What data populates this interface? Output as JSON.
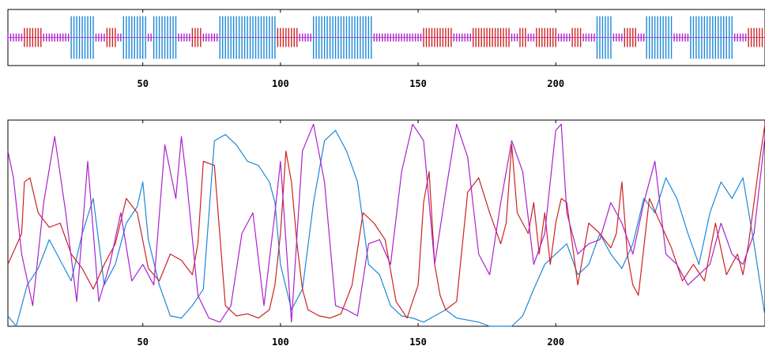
{
  "chart_data": [
    {
      "type": "bar",
      "description_role": "secondary-structure-track",
      "x_range": [
        1,
        276
      ],
      "xticks": [
        "50",
        "100",
        "150",
        "200"
      ],
      "xtick_values": [
        50,
        100,
        150,
        200
      ],
      "grid": false,
      "colors": {
        "helix": "#cc2222",
        "strand": "#1e88d8",
        "coil": "#aa22cc"
      },
      "segments": [
        {
          "state": "coil",
          "start": 1,
          "end": 6
        },
        {
          "state": "helix",
          "start": 7,
          "end": 13
        },
        {
          "state": "coil",
          "start": 14,
          "end": 23
        },
        {
          "state": "strand",
          "start": 24,
          "end": 32
        },
        {
          "state": "coil",
          "start": 33,
          "end": 36
        },
        {
          "state": "helix",
          "start": 37,
          "end": 40
        },
        {
          "state": "coil",
          "start": 41,
          "end": 42
        },
        {
          "state": "strand",
          "start": 43,
          "end": 51
        },
        {
          "state": "coil",
          "start": 52,
          "end": 53
        },
        {
          "state": "strand",
          "start": 54,
          "end": 62
        },
        {
          "state": "coil",
          "start": 63,
          "end": 67
        },
        {
          "state": "helix",
          "start": 68,
          "end": 71
        },
        {
          "state": "coil",
          "start": 72,
          "end": 77
        },
        {
          "state": "strand",
          "start": 78,
          "end": 98
        },
        {
          "state": "helix",
          "start": 99,
          "end": 106
        },
        {
          "state": "coil",
          "start": 107,
          "end": 111
        },
        {
          "state": "strand",
          "start": 112,
          "end": 133
        },
        {
          "state": "coil",
          "start": 134,
          "end": 151
        },
        {
          "state": "helix",
          "start": 152,
          "end": 162
        },
        {
          "state": "coil",
          "start": 163,
          "end": 169
        },
        {
          "state": "helix",
          "start": 170,
          "end": 183
        },
        {
          "state": "coil",
          "start": 184,
          "end": 186
        },
        {
          "state": "helix",
          "start": 187,
          "end": 189
        },
        {
          "state": "coil",
          "start": 190,
          "end": 192
        },
        {
          "state": "helix",
          "start": 193,
          "end": 200
        },
        {
          "state": "coil",
          "start": 201,
          "end": 205
        },
        {
          "state": "helix",
          "start": 206,
          "end": 209
        },
        {
          "state": "coil",
          "start": 210,
          "end": 214
        },
        {
          "state": "strand",
          "start": 215,
          "end": 220
        },
        {
          "state": "coil",
          "start": 221,
          "end": 224
        },
        {
          "state": "helix",
          "start": 225,
          "end": 229
        },
        {
          "state": "coil",
          "start": 230,
          "end": 232
        },
        {
          "state": "strand",
          "start": 233,
          "end": 242
        },
        {
          "state": "coil",
          "start": 243,
          "end": 248
        },
        {
          "state": "strand",
          "start": 249,
          "end": 264
        },
        {
          "state": "coil",
          "start": 265,
          "end": 269
        },
        {
          "state": "helix",
          "start": 270,
          "end": 276
        }
      ]
    },
    {
      "type": "line",
      "description_role": "probability-profile",
      "x_range": [
        1,
        276
      ],
      "y_range": [
        0,
        1
      ],
      "xticks": [
        "50",
        "100",
        "150",
        "200"
      ],
      "xtick_values": [
        50,
        100,
        150,
        200
      ],
      "grid": false,
      "series": [
        {
          "color": "#cc2222",
          "x": [
            1,
            6,
            7,
            9,
            12,
            16,
            20,
            24,
            28,
            32,
            36,
            40,
            44,
            48,
            52,
            56,
            60,
            64,
            68,
            70,
            72,
            76,
            80,
            84,
            88,
            92,
            96,
            98,
            100,
            102,
            104,
            106,
            108,
            110,
            114,
            118,
            122,
            126,
            130,
            134,
            138,
            142,
            146,
            150,
            152,
            154,
            156,
            158,
            160,
            164,
            168,
            172,
            176,
            180,
            182,
            184,
            186,
            188,
            190,
            192,
            194,
            196,
            198,
            200,
            202,
            204,
            208,
            212,
            216,
            220,
            222,
            224,
            226,
            228,
            230,
            234,
            238,
            242,
            246,
            250,
            254,
            258,
            262,
            266,
            268,
            270,
            272,
            274,
            276
          ],
          "y": [
            0.3,
            0.45,
            0.7,
            0.72,
            0.55,
            0.48,
            0.5,
            0.35,
            0.28,
            0.18,
            0.3,
            0.4,
            0.62,
            0.55,
            0.28,
            0.22,
            0.35,
            0.32,
            0.25,
            0.4,
            0.8,
            0.78,
            0.1,
            0.05,
            0.06,
            0.04,
            0.08,
            0.2,
            0.45,
            0.85,
            0.7,
            0.4,
            0.18,
            0.08,
            0.05,
            0.04,
            0.06,
            0.2,
            0.55,
            0.5,
            0.42,
            0.12,
            0.04,
            0.2,
            0.6,
            0.75,
            0.3,
            0.15,
            0.08,
            0.12,
            0.65,
            0.72,
            0.55,
            0.4,
            0.5,
            0.88,
            0.55,
            0.5,
            0.45,
            0.6,
            0.35,
            0.55,
            0.3,
            0.5,
            0.62,
            0.6,
            0.2,
            0.5,
            0.45,
            0.38,
            0.45,
            0.7,
            0.35,
            0.2,
            0.15,
            0.62,
            0.5,
            0.38,
            0.22,
            0.3,
            0.22,
            0.5,
            0.25,
            0.35,
            0.25,
            0.4,
            0.6,
            0.8,
            0.98
          ]
        },
        {
          "color": "#1e88d8",
          "x": [
            1,
            4,
            8,
            12,
            16,
            20,
            24,
            28,
            32,
            36,
            40,
            44,
            48,
            50,
            52,
            56,
            60,
            64,
            68,
            72,
            76,
            80,
            84,
            88,
            92,
            96,
            98,
            100,
            104,
            108,
            112,
            116,
            120,
            124,
            128,
            132,
            136,
            140,
            144,
            148,
            152,
            156,
            160,
            164,
            168,
            172,
            176,
            180,
            184,
            188,
            192,
            196,
            200,
            204,
            208,
            212,
            216,
            220,
            224,
            228,
            232,
            236,
            240,
            244,
            248,
            252,
            256,
            260,
            264,
            268,
            272,
            276
          ],
          "y": [
            0.05,
            0.0,
            0.2,
            0.28,
            0.42,
            0.32,
            0.22,
            0.45,
            0.62,
            0.2,
            0.3,
            0.5,
            0.58,
            0.7,
            0.42,
            0.2,
            0.05,
            0.04,
            0.1,
            0.18,
            0.9,
            0.93,
            0.88,
            0.8,
            0.78,
            0.7,
            0.6,
            0.3,
            0.08,
            0.18,
            0.6,
            0.9,
            0.95,
            0.85,
            0.7,
            0.3,
            0.25,
            0.1,
            0.05,
            0.04,
            0.02,
            0.05,
            0.08,
            0.04,
            0.03,
            0.02,
            0.0,
            0.0,
            0.0,
            0.05,
            0.18,
            0.3,
            0.35,
            0.4,
            0.25,
            0.3,
            0.45,
            0.35,
            0.28,
            0.4,
            0.62,
            0.55,
            0.72,
            0.62,
            0.45,
            0.3,
            0.55,
            0.7,
            0.62,
            0.72,
            0.4,
            0.05
          ]
        },
        {
          "color": "#aa22cc",
          "x": [
            1,
            3,
            6,
            10,
            14,
            18,
            22,
            26,
            30,
            34,
            38,
            42,
            46,
            50,
            54,
            58,
            62,
            64,
            66,
            70,
            74,
            78,
            82,
            86,
            90,
            94,
            98,
            100,
            104,
            108,
            112,
            116,
            120,
            124,
            128,
            132,
            136,
            140,
            144,
            148,
            152,
            156,
            160,
            164,
            168,
            172,
            176,
            180,
            184,
            188,
            192,
            196,
            200,
            202,
            204,
            208,
            212,
            216,
            220,
            224,
            228,
            232,
            236,
            240,
            244,
            248,
            252,
            256,
            260,
            264,
            268,
            272,
            276
          ],
          "y": [
            0.85,
            0.72,
            0.35,
            0.1,
            0.6,
            0.92,
            0.55,
            0.12,
            0.8,
            0.12,
            0.3,
            0.55,
            0.22,
            0.3,
            0.2,
            0.88,
            0.62,
            0.92,
            0.7,
            0.15,
            0.04,
            0.02,
            0.1,
            0.45,
            0.55,
            0.1,
            0.55,
            0.8,
            0.02,
            0.85,
            0.98,
            0.7,
            0.1,
            0.08,
            0.05,
            0.4,
            0.42,
            0.3,
            0.75,
            0.98,
            0.9,
            0.3,
            0.65,
            0.98,
            0.82,
            0.35,
            0.25,
            0.6,
            0.9,
            0.75,
            0.3,
            0.45,
            0.95,
            0.98,
            0.55,
            0.35,
            0.4,
            0.42,
            0.6,
            0.5,
            0.35,
            0.6,
            0.8,
            0.35,
            0.3,
            0.2,
            0.25,
            0.3,
            0.5,
            0.35,
            0.3,
            0.45,
            0.92
          ]
        }
      ]
    }
  ]
}
